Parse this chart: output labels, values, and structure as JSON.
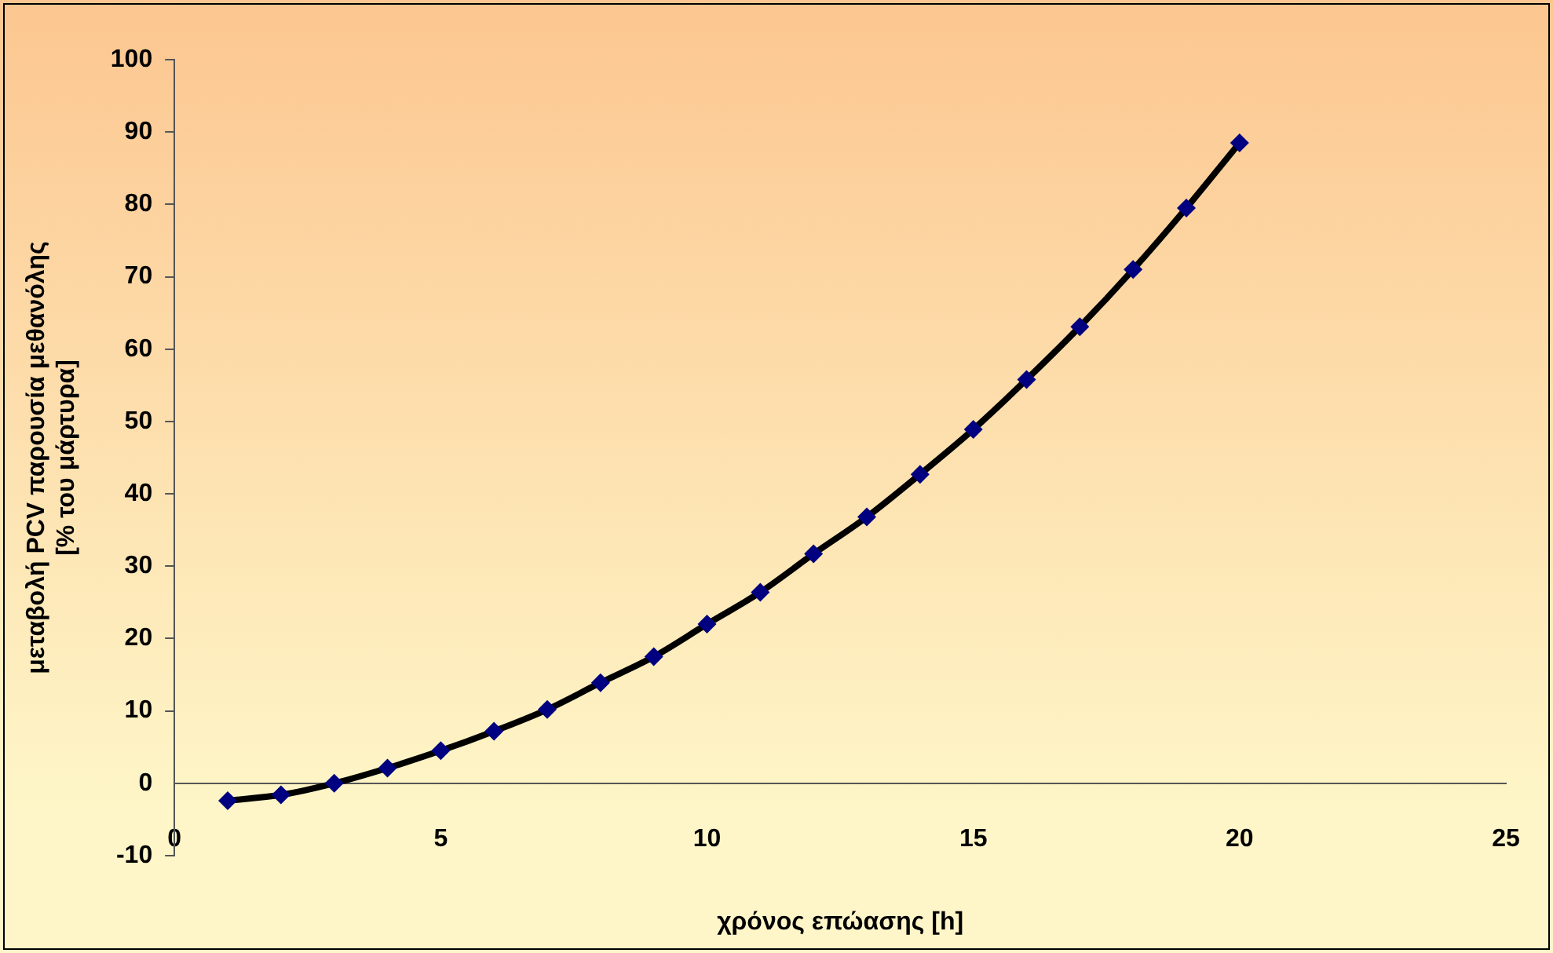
{
  "chart_data": {
    "type": "line",
    "xlabel": "χρόνος επώασης [h]",
    "ylabel": "μεταβολή PCV παρουσία μεθανόλης\n[% του μάρτυρα]",
    "x": [
      1,
      2,
      3,
      4,
      5,
      6,
      7,
      8,
      9,
      10,
      11,
      12,
      13,
      14,
      15,
      16,
      17,
      18,
      19,
      20
    ],
    "series": [
      {
        "type": "line",
        "color": "#000000",
        "marker": "none",
        "values": [
          -2.4,
          -1.6,
          0,
          2.1,
          4.5,
          7.2,
          10.2,
          13.9,
          17.5,
          22.0,
          26.4,
          31.7,
          36.8,
          42.7,
          48.9,
          55.8,
          63.1,
          71.0,
          79.5,
          88.5
        ]
      },
      {
        "type": "scatter",
        "color": "#000080",
        "marker": "diamond",
        "values": [
          -2.4,
          -1.6,
          0,
          2.1,
          4.5,
          7.2,
          10.2,
          13.9,
          17.5,
          22.0,
          26.4,
          31.7,
          36.8,
          42.7,
          48.9,
          55.8,
          63.1,
          71.0,
          79.5,
          88.5
        ]
      }
    ],
    "xlim": [
      0,
      25
    ],
    "xticks": [
      0,
      5,
      10,
      15,
      20,
      25
    ],
    "ylim": [
      -10,
      100
    ],
    "yticks": [
      -10,
      0,
      10,
      20,
      30,
      40,
      50,
      60,
      70,
      80,
      90,
      100
    ],
    "grid": false,
    "legend": false
  }
}
